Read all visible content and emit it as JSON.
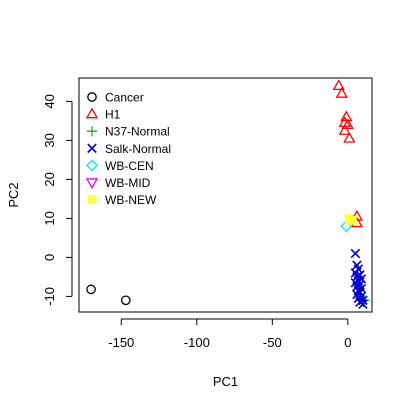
{
  "chart_data": {
    "type": "scatter",
    "xlabel": "PC1",
    "ylabel": "PC2",
    "xlim": [
      -178,
      16
    ],
    "ylim": [
      -14,
      46
    ],
    "xticks": [
      -150,
      -100,
      -50,
      0
    ],
    "yticks": [
      -10,
      0,
      10,
      20,
      30,
      40
    ],
    "xtick_labels": [
      "-150",
      "-100",
      "-50",
      "0"
    ],
    "ytick_labels": [
      "-10",
      "0",
      "10",
      "20",
      "30",
      "40"
    ],
    "grid": false,
    "legend_position": "top-left",
    "series": [
      {
        "name": "Cancer",
        "marker": "circle",
        "color": "#000000",
        "points": [
          [
            -170,
            -8.2
          ],
          [
            -147,
            -11
          ]
        ]
      },
      {
        "name": "H1",
        "marker": "triangle-up",
        "color": "#ff0000",
        "points": [
          [
            -6,
            44
          ],
          [
            -4,
            42
          ],
          [
            -1,
            36
          ],
          [
            -2,
            34.5
          ],
          [
            0,
            34
          ],
          [
            -2,
            32.5
          ],
          [
            1,
            30.5
          ],
          [
            6,
            10.5
          ],
          [
            6,
            8.8
          ]
        ]
      },
      {
        "name": "N37-Normal",
        "marker": "plus",
        "color": "#22aa22",
        "points": [
          [
            11,
            -11
          ]
        ]
      },
      {
        "name": "Salk-Normal",
        "marker": "x",
        "color": "#0000cc",
        "points": [
          [
            5,
            1
          ],
          [
            6,
            -2
          ],
          [
            7,
            -3
          ],
          [
            5,
            -4
          ],
          [
            8,
            -4.5
          ],
          [
            6,
            -5
          ],
          [
            7,
            -6
          ],
          [
            9,
            -5.5
          ],
          [
            5,
            -6.5
          ],
          [
            8,
            -7
          ],
          [
            6,
            -7.5
          ],
          [
            9,
            -8
          ],
          [
            7,
            -8.5
          ],
          [
            8,
            -9
          ],
          [
            6,
            -9.5
          ],
          [
            9,
            -10
          ],
          [
            7,
            -10.5
          ],
          [
            10,
            -11
          ],
          [
            8,
            -11.5
          ],
          [
            10,
            -12
          ]
        ]
      },
      {
        "name": "WB-CEN",
        "marker": "diamond",
        "color": "#00e5ee",
        "points": [
          [
            -1,
            8
          ]
        ]
      },
      {
        "name": "WB-MID",
        "marker": "triangle-down",
        "color": "#ee00ee",
        "points": []
      },
      {
        "name": "WB-NEW",
        "marker": "square",
        "color": "#ffff44",
        "points": [
          [
            1,
            10
          ],
          [
            3,
            9.5
          ]
        ]
      }
    ]
  }
}
